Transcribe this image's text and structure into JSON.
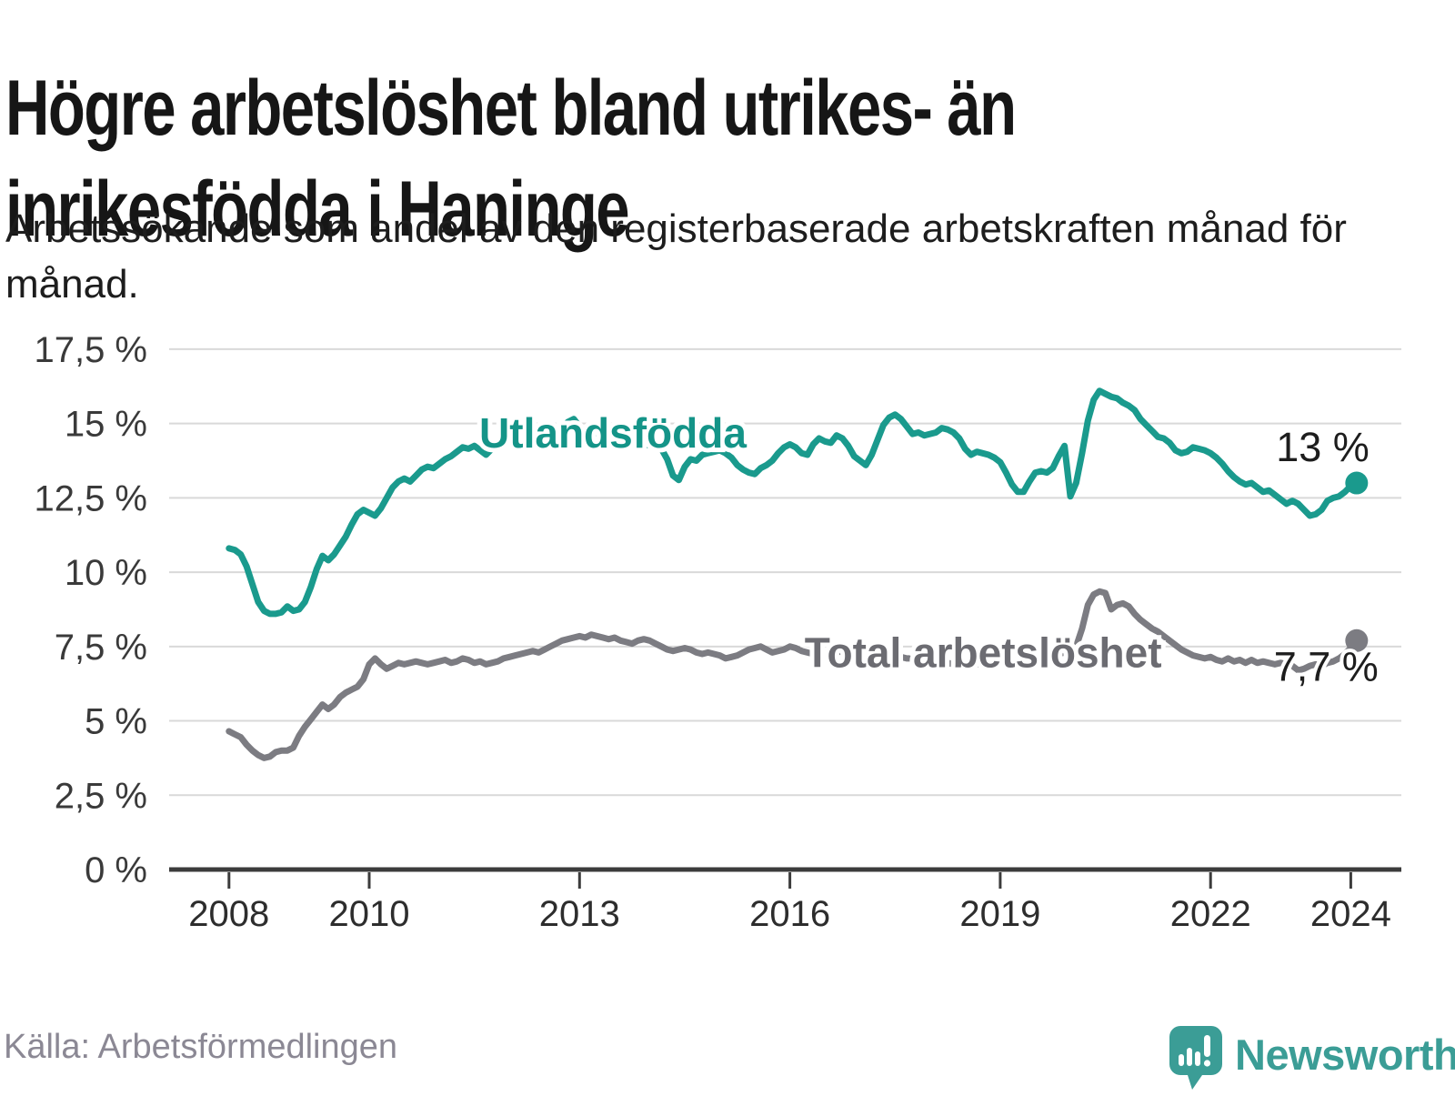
{
  "header": {
    "title": "Högre arbetslöshet bland utrikes- än inrikesfödda i Haninge",
    "subtitle": "Arbetssökande som andel av den registerbaserade arbetskraften månad för månad."
  },
  "footer": {
    "source": "Källa: Arbetsförmedlingen",
    "brand": "Newsworthy"
  },
  "colors": {
    "teal_line": "#1a9a8d",
    "gray_line": "#7c7c82",
    "teal_label": "#149488",
    "gray_label": "#6c6c72",
    "gridline": "#d9d9d9",
    "axis": "#3c3c3c",
    "tick_label": "#3a3a3a",
    "value_label": "#1d1d1d",
    "logo_teal": "#3b9d96"
  },
  "chart_data": {
    "type": "line",
    "x_start_year": 2008,
    "x_start_month": 1,
    "frequency": "monthly",
    "ylim": [
      0,
      17.5
    ],
    "grid": true,
    "y_ticks": [
      {
        "value": 17.5,
        "label": "17,5 %"
      },
      {
        "value": 15,
        "label": "15 %"
      },
      {
        "value": 12.5,
        "label": "12,5 %"
      },
      {
        "value": 10,
        "label": "10 %"
      },
      {
        "value": 7.5,
        "label": "7,5 %"
      },
      {
        "value": 5,
        "label": "5 %"
      },
      {
        "value": 2.5,
        "label": "2,5 %"
      },
      {
        "value": 0,
        "label": "0 %"
      }
    ],
    "x_ticks": [
      {
        "year": 2008,
        "label": "2008"
      },
      {
        "year": 2010,
        "label": "2010"
      },
      {
        "year": 2013,
        "label": "2013"
      },
      {
        "year": 2016,
        "label": "2016"
      },
      {
        "year": 2019,
        "label": "2019"
      },
      {
        "year": 2022,
        "label": "2022"
      },
      {
        "year": 2024,
        "label": "2024"
      }
    ],
    "series": [
      {
        "name": "Utlandsfödda",
        "color": "#1a9a8d",
        "label_color": "#149488",
        "label_anchor": {
          "year": 2011.57,
          "value": 14.2
        },
        "end_label": "13 %",
        "end_label_position": "above",
        "values": [
          10.8,
          10.75,
          10.6,
          10.2,
          9.6,
          9.0,
          8.7,
          8.6,
          8.6,
          8.65,
          8.85,
          8.7,
          8.75,
          9.0,
          9.5,
          10.1,
          10.55,
          10.4,
          10.6,
          10.9,
          11.2,
          11.6,
          11.95,
          12.1,
          12.0,
          11.9,
          12.15,
          12.5,
          12.85,
          13.05,
          13.15,
          13.05,
          13.25,
          13.45,
          13.55,
          13.5,
          13.65,
          13.8,
          13.9,
          14.05,
          14.2,
          14.15,
          14.25,
          14.1,
          13.95,
          14.15,
          14.3,
          14.45,
          14.4,
          14.3,
          14.2,
          14.4,
          14.5,
          14.4,
          14.35,
          14.5,
          14.65,
          14.85,
          15.05,
          15.15,
          14.9,
          14.7,
          14.6,
          14.7,
          14.75,
          14.6,
          14.5,
          14.45,
          14.4,
          14.35,
          14.3,
          14.25,
          14.3,
          14.25,
          14.15,
          13.8,
          13.25,
          13.1,
          13.55,
          13.8,
          13.75,
          13.95,
          14.0,
          14.05,
          14.1,
          14.0,
          13.85,
          13.6,
          13.45,
          13.35,
          13.3,
          13.5,
          13.6,
          13.75,
          14.0,
          14.2,
          14.3,
          14.2,
          14.0,
          13.95,
          14.3,
          14.5,
          14.4,
          14.35,
          14.6,
          14.5,
          14.25,
          13.9,
          13.75,
          13.6,
          13.95,
          14.45,
          14.95,
          15.2,
          15.3,
          15.15,
          14.9,
          14.65,
          14.7,
          14.6,
          14.65,
          14.7,
          14.85,
          14.8,
          14.7,
          14.5,
          14.15,
          13.95,
          14.05,
          14.0,
          13.95,
          13.85,
          13.7,
          13.35,
          12.95,
          12.7,
          12.7,
          13.05,
          13.35,
          13.4,
          13.35,
          13.5,
          13.9,
          14.25,
          12.55,
          13.0,
          14.0,
          15.1,
          15.8,
          16.1,
          16.0,
          15.9,
          15.85,
          15.7,
          15.6,
          15.45,
          15.15,
          14.95,
          14.75,
          14.55,
          14.5,
          14.35,
          14.1,
          14.0,
          14.05,
          14.2,
          14.15,
          14.1,
          14.0,
          13.85,
          13.65,
          13.4,
          13.2,
          13.05,
          12.95,
          13.0,
          12.85,
          12.7,
          12.75,
          12.6,
          12.45,
          12.3,
          12.4,
          12.3,
          12.1,
          11.9,
          11.95,
          12.1,
          12.4,
          12.5,
          12.55,
          12.7,
          12.9,
          13.0
        ]
      },
      {
        "name": "Total arbetslöshet",
        "color": "#7c7c82",
        "label_color": "#6c6c72",
        "label_anchor": {
          "year": 2016.21,
          "value": 6.8
        },
        "end_label": "7,7 %",
        "end_label_position": "below",
        "values": [
          4.65,
          4.55,
          4.45,
          4.2,
          4.0,
          3.85,
          3.75,
          3.8,
          3.95,
          4.0,
          4.0,
          4.1,
          4.5,
          4.8,
          5.05,
          5.3,
          5.55,
          5.4,
          5.55,
          5.8,
          5.95,
          6.05,
          6.15,
          6.4,
          6.9,
          7.1,
          6.9,
          6.75,
          6.85,
          6.95,
          6.9,
          6.95,
          7.0,
          6.95,
          6.9,
          6.95,
          7.0,
          7.05,
          6.95,
          7.0,
          7.1,
          7.05,
          6.95,
          7.0,
          6.9,
          6.95,
          7.0,
          7.1,
          7.15,
          7.2,
          7.25,
          7.3,
          7.35,
          7.3,
          7.4,
          7.5,
          7.6,
          7.7,
          7.75,
          7.8,
          7.85,
          7.8,
          7.9,
          7.85,
          7.8,
          7.75,
          7.8,
          7.7,
          7.65,
          7.6,
          7.7,
          7.75,
          7.7,
          7.6,
          7.5,
          7.4,
          7.35,
          7.4,
          7.45,
          7.4,
          7.3,
          7.25,
          7.3,
          7.25,
          7.2,
          7.1,
          7.15,
          7.2,
          7.3,
          7.4,
          7.45,
          7.5,
          7.4,
          7.3,
          7.35,
          7.4,
          7.5,
          7.45,
          7.35,
          7.3,
          7.25,
          7.2,
          7.25,
          7.2,
          7.3,
          7.35,
          7.3,
          7.25,
          7.3,
          7.35,
          7.45,
          7.5,
          7.45,
          7.35,
          7.25,
          7.15,
          7.1,
          7.1,
          7.15,
          7.1,
          7.1,
          7.05,
          7.0,
          6.95,
          6.9,
          6.85,
          6.8,
          6.85,
          6.9,
          6.95,
          7.0,
          7.0,
          7.05,
          7.1,
          7.05,
          7.0,
          7.05,
          7.1,
          7.15,
          7.1,
          7.15,
          7.2,
          7.25,
          7.3,
          7.4,
          7.5,
          8.1,
          8.9,
          9.25,
          9.35,
          9.3,
          8.75,
          8.9,
          8.95,
          8.85,
          8.6,
          8.4,
          8.25,
          8.1,
          8.0,
          7.85,
          7.7,
          7.55,
          7.4,
          7.3,
          7.2,
          7.15,
          7.1,
          7.15,
          7.05,
          7.0,
          7.1,
          7.0,
          7.05,
          6.95,
          7.05,
          6.95,
          7.0,
          6.95,
          6.9,
          6.95,
          6.9,
          6.85,
          6.7,
          6.75,
          6.85,
          6.9,
          6.85,
          6.95,
          7.0,
          7.1,
          7.25,
          7.45,
          7.7
        ]
      }
    ]
  }
}
